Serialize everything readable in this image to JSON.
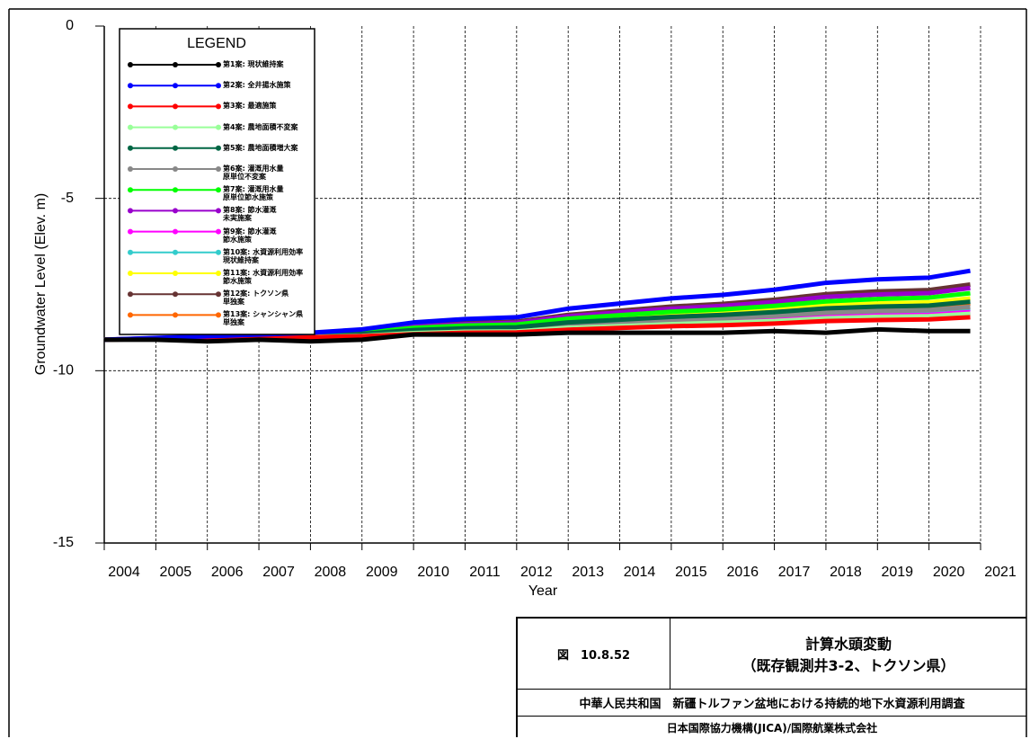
{
  "chart_data": {
    "type": "line",
    "y_label": "Groundwater Level (Elev. m)",
    "x_label": "Year",
    "legend_title": "LEGEND",
    "xlim": [
      2004,
      2021
    ],
    "xticks": [
      2004,
      2005,
      2006,
      2007,
      2008,
      2009,
      2010,
      2011,
      2012,
      2013,
      2014,
      2015,
      2016,
      2017,
      2018,
      2019,
      2020,
      2021
    ],
    "ylim": [
      -15,
      0
    ],
    "yticks": [
      -15,
      -10,
      -5,
      0
    ],
    "grid": true,
    "legend": "upper left",
    "x": [
      2004,
      2005,
      2006,
      2007,
      2008,
      2009,
      2010,
      2011,
      2012,
      2013,
      2014,
      2015,
      2016,
      2017,
      2018,
      2019,
      2020,
      2020.8
    ],
    "series": [
      {
        "name": "第1案: 現状維持案",
        "color": "#000000",
        "values": [
          -9.1,
          -9.1,
          -9.15,
          -9.1,
          -9.15,
          -9.1,
          -8.95,
          -8.95,
          -8.95,
          -8.9,
          -8.9,
          -8.9,
          -8.9,
          -8.85,
          -8.9,
          -8.8,
          -8.85,
          -8.85
        ]
      },
      {
        "name": "第2案: 全井揚水施策",
        "color": "#0000ff",
        "values": [
          -9.1,
          -9.05,
          -9.0,
          -8.95,
          -8.9,
          -8.8,
          -8.6,
          -8.5,
          -8.45,
          -8.2,
          -8.05,
          -7.9,
          -7.8,
          -7.65,
          -7.45,
          -7.35,
          -7.3,
          -7.1
        ]
      },
      {
        "name": "第3案: 最適施策",
        "color": "#ff0000",
        "values": [
          -9.1,
          -9.08,
          -9.07,
          -9.05,
          -9.03,
          -9.0,
          -8.94,
          -8.9,
          -8.89,
          -8.81,
          -8.76,
          -8.71,
          -8.68,
          -8.63,
          -8.56,
          -8.53,
          -8.51,
          -8.45
        ]
      },
      {
        "name": "第4案: 農地面積不変案",
        "color": "#99ff99",
        "values": [
          -9.1,
          -9.08,
          -9.06,
          -9.04,
          -9.02,
          -8.99,
          -8.91,
          -8.87,
          -8.86,
          -8.76,
          -8.71,
          -8.65,
          -8.61,
          -8.56,
          -8.48,
          -8.44,
          -8.42,
          -8.35
        ]
      },
      {
        "name": "第5案: 農地面積増大案",
        "color": "#006644",
        "values": [
          -9.1,
          -9.07,
          -9.04,
          -9.02,
          -8.99,
          -8.93,
          -8.82,
          -8.77,
          -8.74,
          -8.6,
          -8.52,
          -8.44,
          -8.38,
          -8.3,
          -8.19,
          -8.14,
          -8.11,
          -8.0
        ]
      },
      {
        "name": "第6案: 灌漑用水量\n原単位不変案",
        "color": "#888888",
        "values": [
          -9.1,
          -9.08,
          -9.05,
          -9.03,
          -9.0,
          -8.96,
          -8.86,
          -8.81,
          -8.79,
          -8.67,
          -8.6,
          -8.53,
          -8.48,
          -8.41,
          -8.32,
          -8.27,
          -8.24,
          -8.15
        ]
      },
      {
        "name": "第7案: 灌漑用水量\n原単位節水施策",
        "color": "#00ff00",
        "values": [
          -9.1,
          -9.07,
          -9.03,
          -9.0,
          -8.96,
          -8.9,
          -8.76,
          -8.69,
          -8.66,
          -8.49,
          -8.39,
          -8.29,
          -8.22,
          -8.12,
          -7.99,
          -7.92,
          -7.88,
          -7.75
        ]
      },
      {
        "name": "第8案: 節水灌漑\n未実施案",
        "color": "#9900cc",
        "values": [
          -9.1,
          -9.06,
          -9.02,
          -8.99,
          -8.95,
          -8.87,
          -8.72,
          -8.65,
          -8.61,
          -8.42,
          -8.31,
          -8.2,
          -8.12,
          -8.01,
          -7.86,
          -7.79,
          -7.75,
          -7.6
        ]
      },
      {
        "name": "第9案: 節水灌漑\n節水施策",
        "color": "#ff00ff",
        "values": [
          -9.1,
          -9.08,
          -9.06,
          -9.04,
          -9.02,
          -8.98,
          -8.9,
          -8.86,
          -8.84,
          -8.74,
          -8.68,
          -8.62,
          -8.58,
          -8.52,
          -8.44,
          -8.4,
          -8.38,
          -8.3
        ]
      },
      {
        "name": "第10案: 水資源利用効率\n現状維持案",
        "color": "#33cccc",
        "values": [
          -9.1,
          -9.08,
          -9.05,
          -9.03,
          -9.01,
          -8.96,
          -8.87,
          -8.83,
          -8.81,
          -8.69,
          -8.63,
          -8.56,
          -8.51,
          -8.45,
          -8.36,
          -8.31,
          -8.29,
          -8.2
        ]
      },
      {
        "name": "第11案: 水資源利用効率\n節水施策",
        "color": "#ffff00",
        "values": [
          -9.1,
          -9.07,
          -9.04,
          -9.01,
          -8.98,
          -8.92,
          -8.8,
          -8.74,
          -8.71,
          -8.56,
          -8.47,
          -8.38,
          -8.32,
          -8.23,
          -8.11,
          -8.05,
          -8.02,
          -7.9
        ]
      },
      {
        "name": "第12案: トクソン県\n単独案",
        "color": "#663333",
        "values": [
          -9.1,
          -9.06,
          -9.02,
          -8.98,
          -8.94,
          -8.86,
          -8.7,
          -8.62,
          -8.58,
          -8.38,
          -8.26,
          -8.14,
          -8.06,
          -7.94,
          -7.78,
          -7.7,
          -7.66,
          -7.5
        ]
      },
      {
        "name": "第13案: シャンシャン県\n単独案",
        "color": "#ff6600",
        "values": [
          -9.1,
          -9.07,
          -9.05,
          -9.02,
          -8.99,
          -8.94,
          -8.84,
          -8.78,
          -8.76,
          -8.63,
          -8.55,
          -8.47,
          -8.42,
          -8.34,
          -8.23,
          -8.18,
          -8.15,
          -8.05
        ]
      }
    ]
  },
  "footer": {
    "figure_no": "図　10.8.52",
    "caption": "計算水頭変動\n（既存観測井3-2、トクソン県）",
    "project": "中華人民共和国　新疆トルファン盆地における持続的地下水資源利用調査",
    "organization": "日本国際協力機構(JICA)/国際航業株式会社"
  }
}
